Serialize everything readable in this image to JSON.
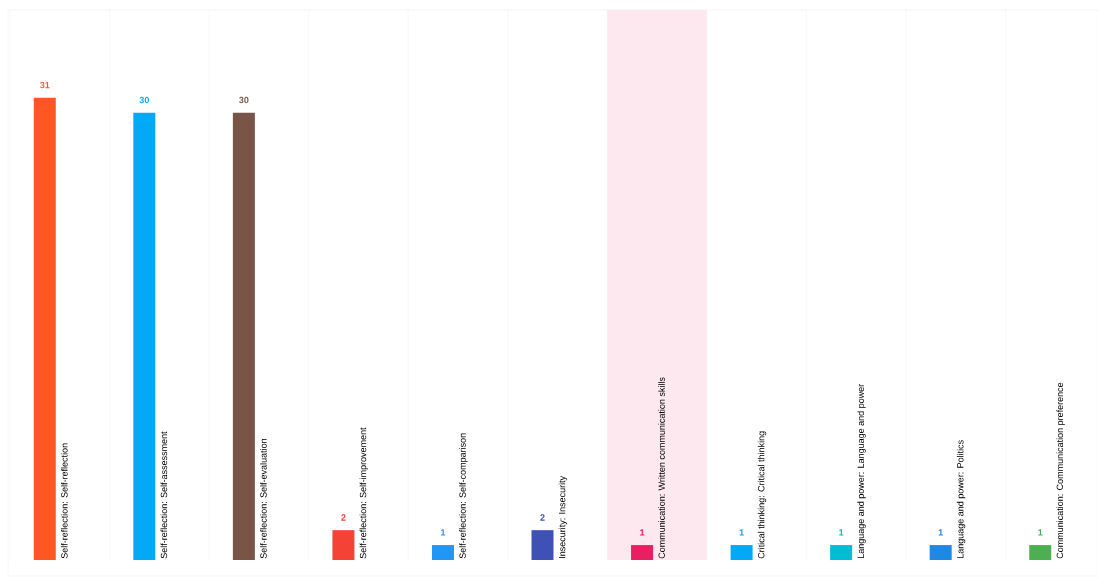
{
  "chart_data": {
    "type": "bar",
    "categories": [
      "Self-reflection: Self-reflection",
      "Self-reflection: Self-assessment",
      "Self-reflection: Self-evaluation",
      "Self-reflection: Self-improvement",
      "Self-reflection: Self-comparison",
      "Insecurity: Insecurity",
      "Communication: Written communication skills",
      "Critical thinking: Critical thinking",
      "Language and power: Language and power",
      "Language and power: Politics",
      "Communication: Communication preference"
    ],
    "values": [
      31,
      30,
      30,
      2,
      1,
      2,
      1,
      1,
      1,
      1,
      1
    ],
    "colors": [
      "#ff5722",
      "#03a9f4",
      "#795548",
      "#f44336",
      "#2196f3",
      "#3f51b5",
      "#e91e63",
      "#03a9f4",
      "#00bcd4",
      "#1e88e5",
      "#4caf50"
    ],
    "data_labels": true,
    "grid": "x",
    "bands": [
      {
        "axis": "x",
        "from": "Communication: Written communication skills",
        "to": "Communication: Written communication skills",
        "color": "#fce8ee"
      }
    ]
  }
}
